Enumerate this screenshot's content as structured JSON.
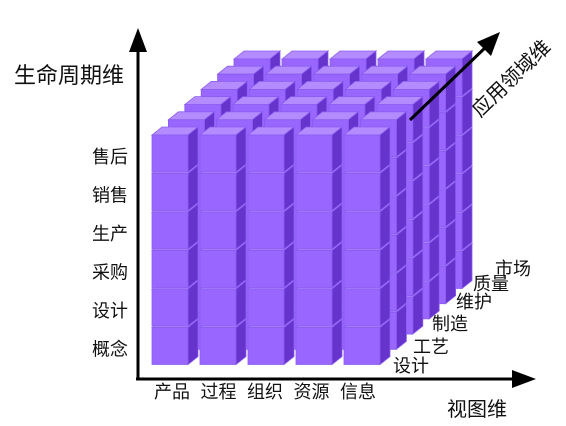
{
  "axes": {
    "vertical_label": "生命周期维",
    "horizontal_label": "视图维",
    "depth_label": "应用领域维"
  },
  "lifecycle_items": [
    "售后",
    "销售",
    "生产",
    "采购",
    "设计",
    "概念"
  ],
  "view_items": [
    "产品",
    "过程",
    "组织",
    "资源",
    "信息"
  ],
  "domain_items": [
    "设计",
    "工艺",
    "制造",
    "维护",
    "质量",
    "市场"
  ],
  "colors": {
    "front": "#9966ff",
    "top": "#b48cff",
    "side": "#6633cc",
    "edge": "#8a5cf0",
    "axis": "#000000"
  }
}
